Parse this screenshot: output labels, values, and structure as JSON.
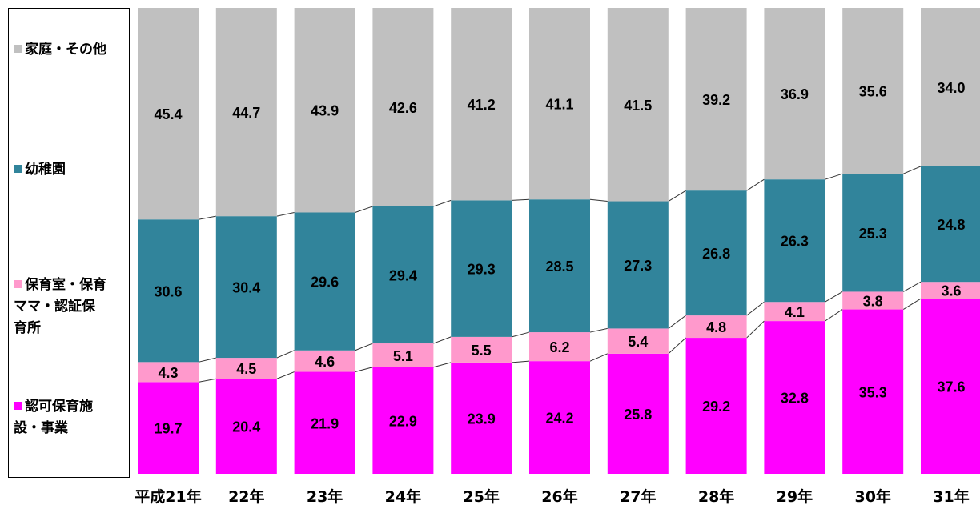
{
  "chart_data": {
    "type": "bar",
    "stacked": true,
    "percent": true,
    "categories": [
      "平成21年",
      "22年",
      "23年",
      "24年",
      "25年",
      "26年",
      "27年",
      "28年",
      "29年",
      "30年",
      "31年"
    ],
    "series": [
      {
        "name": "認可保育施\n設・事業",
        "color": "#ff00ff",
        "values": [
          19.7,
          20.4,
          21.9,
          22.9,
          23.9,
          24.2,
          25.8,
          29.2,
          32.8,
          35.3,
          37.6
        ]
      },
      {
        "name": "保育室・保育\nママ・認証保\n育所",
        "color": "#ff99cc",
        "values": [
          4.3,
          4.5,
          4.6,
          5.1,
          5.5,
          6.2,
          5.4,
          4.8,
          4.1,
          3.8,
          3.6
        ]
      },
      {
        "name": "幼稚園",
        "color": "#31849b",
        "values": [
          30.6,
          30.4,
          29.6,
          29.4,
          29.3,
          28.5,
          27.3,
          26.8,
          26.3,
          25.3,
          24.8
        ]
      },
      {
        "name": "家庭・その他",
        "color": "#c0c0c0",
        "values": [
          45.4,
          44.7,
          43.9,
          42.6,
          41.2,
          41.1,
          41.5,
          39.2,
          36.9,
          35.6,
          34.0
        ]
      }
    ],
    "ylim": [
      0,
      100
    ],
    "legend": "left",
    "grid": false,
    "series_lines": true
  }
}
